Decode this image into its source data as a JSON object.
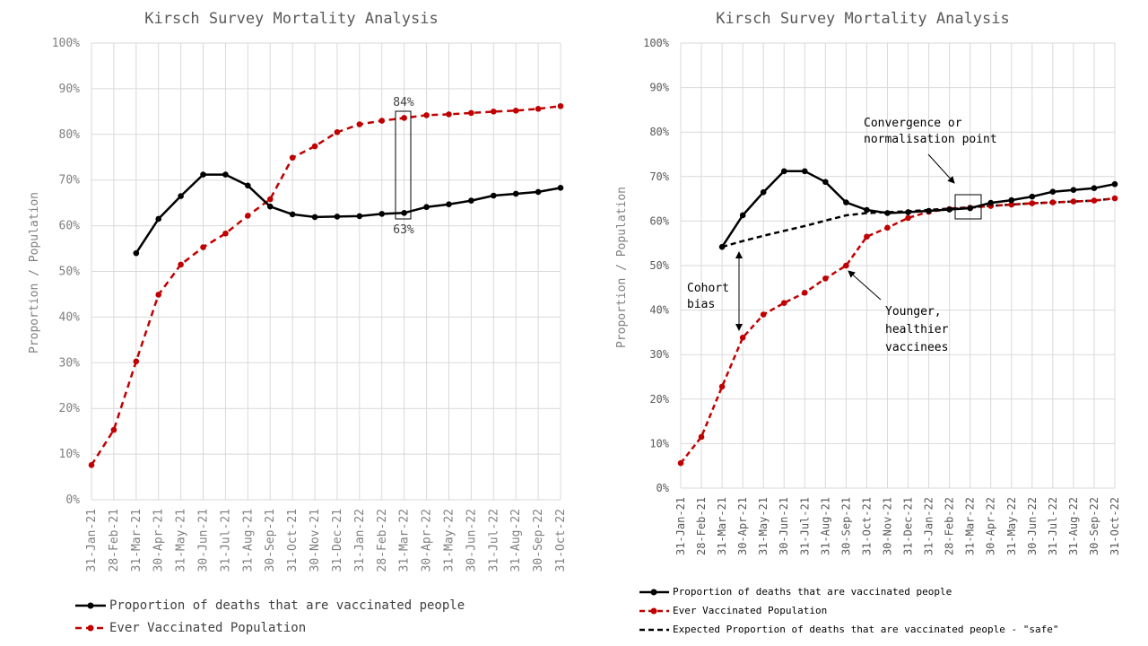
{
  "chart_data": [
    {
      "type": "line",
      "title": "Kirsch Survey Mortality Analysis",
      "ylabel": "Proportion / Population",
      "xlabel": "",
      "ylim": [
        0,
        100
      ],
      "y_ticks": [
        "0%",
        "10%",
        "20%",
        "30%",
        "40%",
        "50%",
        "60%",
        "70%",
        "80%",
        "90%",
        "100%"
      ],
      "categories": [
        "31-Jan-21",
        "28-Feb-21",
        "31-Mar-21",
        "30-Apr-21",
        "31-May-21",
        "30-Jun-21",
        "31-Jul-21",
        "31-Aug-21",
        "30-Sep-21",
        "31-Oct-21",
        "30-Nov-21",
        "31-Dec-21",
        "31-Jan-22",
        "28-Feb-22",
        "31-Mar-22",
        "30-Apr-22",
        "31-May-22",
        "30-Jun-22",
        "31-Jul-22",
        "31-Aug-22",
        "30-Sep-22",
        "31-Oct-22"
      ],
      "grid": true,
      "legend_position": "bottom",
      "series": [
        {
          "name": "Proportion of deaths that are vaccinated people",
          "color": "#000000",
          "style": "solid",
          "values": [
            null,
            null,
            54.0,
            61.5,
            66.5,
            71.2,
            71.2,
            68.8,
            64.2,
            62.5,
            61.9,
            62.0,
            62.1,
            62.6,
            62.8,
            64.1,
            64.7,
            65.5,
            66.6,
            67.0,
            67.4,
            68.3
          ]
        },
        {
          "name": "Ever Vaccinated Population",
          "color": "#c00000",
          "style": "dashed",
          "values": [
            7.6,
            15.3,
            30.3,
            44.9,
            51.5,
            55.3,
            58.3,
            62.2,
            65.8,
            74.9,
            77.4,
            80.5,
            82.2,
            83.0,
            83.6,
            84.2,
            84.4,
            84.7,
            85.0,
            85.2,
            85.6,
            86.2
          ]
        }
      ],
      "annotations": [
        {
          "text": "84%",
          "category": "31-Mar-22",
          "value": 84
        },
        {
          "text": "63%",
          "category": "31-Mar-22",
          "value": 63
        }
      ]
    },
    {
      "type": "line",
      "title": "Kirsch Survey Mortality Analysis",
      "ylabel": "Proportion / Population",
      "xlabel": "",
      "ylim": [
        0,
        100
      ],
      "y_ticks": [
        "0%",
        "10%",
        "20%",
        "30%",
        "40%",
        "50%",
        "60%",
        "70%",
        "80%",
        "90%",
        "100%"
      ],
      "categories": [
        "31-Jan-21",
        "28-Feb-21",
        "31-Mar-21",
        "30-Apr-21",
        "31-May-21",
        "30-Jun-21",
        "31-Jul-21",
        "31-Aug-21",
        "30-Sep-21",
        "31-Oct-21",
        "30-Nov-21",
        "31-Dec-21",
        "31-Jan-22",
        "28-Feb-22",
        "31-Mar-22",
        "30-Apr-22",
        "31-May-22",
        "30-Jun-22",
        "31-Jul-22",
        "31-Aug-22",
        "30-Sep-22",
        "31-Oct-22"
      ],
      "grid": true,
      "legend_position": "bottom",
      "series": [
        {
          "name": "Proportion of deaths that are vaccinated people",
          "color": "#000000",
          "style": "solid",
          "markers": true,
          "values": [
            null,
            null,
            54.2,
            61.3,
            66.5,
            71.2,
            71.2,
            68.8,
            64.2,
            62.5,
            61.8,
            62.0,
            62.3,
            62.6,
            62.9,
            64.1,
            64.7,
            65.5,
            66.6,
            67.0,
            67.4,
            68.3
          ]
        },
        {
          "name": "Ever Vaccinated Population",
          "color": "#c00000",
          "style": "dashed",
          "markers": true,
          "values": [
            5.6,
            11.5,
            22.8,
            33.8,
            39.0,
            41.6,
            43.9,
            47.1,
            50.0,
            56.5,
            58.5,
            60.7,
            62.1,
            62.7,
            63.0,
            63.4,
            63.7,
            64.0,
            64.2,
            64.4,
            64.6,
            65.1
          ]
        },
        {
          "name": "Expected Proportion of deaths that are vaccinated people - \"safe\"",
          "color": "#000000",
          "style": "dashed",
          "markers": false,
          "values": [
            null,
            null,
            54.2,
            55.5,
            56.7,
            57.8,
            58.9,
            60.1,
            61.3,
            61.8,
            62.0,
            62.2,
            62.5,
            62.8,
            63.1,
            63.4,
            63.7,
            64.0,
            64.2,
            64.4,
            64.6,
            65.1
          ]
        }
      ],
      "annotations": [
        {
          "text": "Convergence or normalisation point",
          "lines": [
            "Convergence or",
            "normalisation point"
          ]
        },
        {
          "text": "Cohort bias",
          "lines": [
            "Cohort",
            "bias"
          ]
        },
        {
          "text": "Younger, healthier vaccinees",
          "lines": [
            "Younger,",
            "healthier",
            "vaccinees"
          ]
        }
      ]
    }
  ]
}
